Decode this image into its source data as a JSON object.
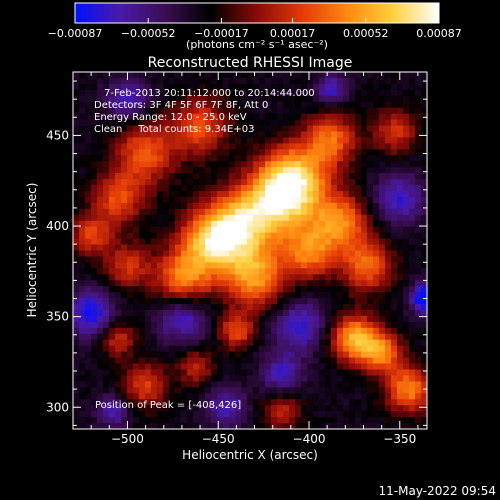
{
  "chart_data": {
    "type": "heatmap",
    "title": "Reconstructed RHESSI Image",
    "xlabel": "Heliocentric X (arcsec)",
    "ylabel": "Heliocentric Y (arcsec)",
    "xlim": [
      -530,
      -335
    ],
    "ylim": [
      288,
      485
    ],
    "x_ticks": [
      -500,
      -450,
      -400,
      -350
    ],
    "y_ticks": [
      300,
      350,
      400,
      450
    ],
    "x_tick_labels": [
      "−500",
      "−450",
      "−400",
      "−350"
    ],
    "y_tick_labels": [
      "300",
      "350",
      "400",
      "450"
    ],
    "colorbar": {
      "range": [
        -0.00087,
        0.00087
      ],
      "ticks": [
        -0.00087,
        -0.00052,
        -0.00017,
        0.00017,
        0.00052,
        0.00087
      ],
      "tick_labels": [
        "−0.00087",
        "−0.00052",
        "−0.00017",
        "0.00017",
        "0.00052",
        "0.00087"
      ],
      "units_label": "(photons cm⁻² s⁻¹ asec⁻²)",
      "colormap": [
        "#0010ff",
        "#4a1aa8",
        "#3a0d50",
        "#000000",
        "#8a0a08",
        "#e43a08",
        "#ff8a10",
        "#ffd040",
        "#ffffff"
      ]
    },
    "annotations": [
      "7-Feb-2013 20:11:12.000 to 20:14:44.000",
      "Detectors: 3F 4F 5F 6F 7F 8F, Att 0",
      "Energy Range: 12.0 - 25.0 keV",
      "Clean     Total counts: 9.34E+03"
    ],
    "peak_label": "Position of Peak = [-408,426]",
    "peak": [
      -408,
      426
    ],
    "blobs": [
      {
        "x": -408,
        "y": 426,
        "s": 13,
        "a": 1.0
      },
      {
        "x": -418,
        "y": 412,
        "s": 14,
        "a": 0.85
      },
      {
        "x": -440,
        "y": 400,
        "s": 13,
        "a": 0.9
      },
      {
        "x": -455,
        "y": 390,
        "s": 12,
        "a": 0.85
      },
      {
        "x": -470,
        "y": 370,
        "s": 11,
        "a": 0.75
      },
      {
        "x": -430,
        "y": 372,
        "s": 12,
        "a": 0.85
      },
      {
        "x": -400,
        "y": 385,
        "s": 10,
        "a": 0.7
      },
      {
        "x": -383,
        "y": 402,
        "s": 11,
        "a": 0.8
      },
      {
        "x": -368,
        "y": 378,
        "s": 10,
        "a": 0.7
      },
      {
        "x": -388,
        "y": 448,
        "s": 10,
        "a": 0.7
      },
      {
        "x": -460,
        "y": 455,
        "s": 11,
        "a": 0.6
      },
      {
        "x": -490,
        "y": 440,
        "s": 12,
        "a": 0.65
      },
      {
        "x": -505,
        "y": 415,
        "s": 10,
        "a": 0.6
      },
      {
        "x": -500,
        "y": 378,
        "s": 9,
        "a": 0.5
      },
      {
        "x": -520,
        "y": 395,
        "s": 8,
        "a": 0.55
      },
      {
        "x": -375,
        "y": 338,
        "s": 9,
        "a": 0.95
      },
      {
        "x": -360,
        "y": 330,
        "s": 8,
        "a": 0.75
      },
      {
        "x": -345,
        "y": 310,
        "s": 9,
        "a": 0.8
      },
      {
        "x": -440,
        "y": 342,
        "s": 7,
        "a": 0.6
      },
      {
        "x": -490,
        "y": 312,
        "s": 9,
        "a": 0.55
      },
      {
        "x": -505,
        "y": 338,
        "s": 7,
        "a": 0.5
      },
      {
        "x": -352,
        "y": 452,
        "s": 9,
        "a": 0.5
      },
      {
        "x": -415,
        "y": 298,
        "s": 8,
        "a": 0.45
      },
      {
        "x": -462,
        "y": 322,
        "s": 7,
        "a": 0.45
      },
      {
        "x": -335,
        "y": 360,
        "s": 6,
        "a": -0.9
      },
      {
        "x": -470,
        "y": 350,
        "s": 10,
        "a": -0.55
      },
      {
        "x": -520,
        "y": 352,
        "s": 9,
        "a": -0.65
      },
      {
        "x": -500,
        "y": 470,
        "s": 8,
        "a": -0.5
      },
      {
        "x": -405,
        "y": 345,
        "s": 10,
        "a": -0.55
      },
      {
        "x": -415,
        "y": 318,
        "s": 8,
        "a": -0.5
      },
      {
        "x": -350,
        "y": 415,
        "s": 10,
        "a": -0.5
      },
      {
        "x": -388,
        "y": 475,
        "s": 6,
        "a": -0.5
      },
      {
        "x": -445,
        "y": 300,
        "s": 8,
        "a": -0.45
      },
      {
        "x": -508,
        "y": 298,
        "s": 6,
        "a": -0.5
      }
    ]
  },
  "footer": {
    "timestamp": "11-May-2022 09:54"
  }
}
